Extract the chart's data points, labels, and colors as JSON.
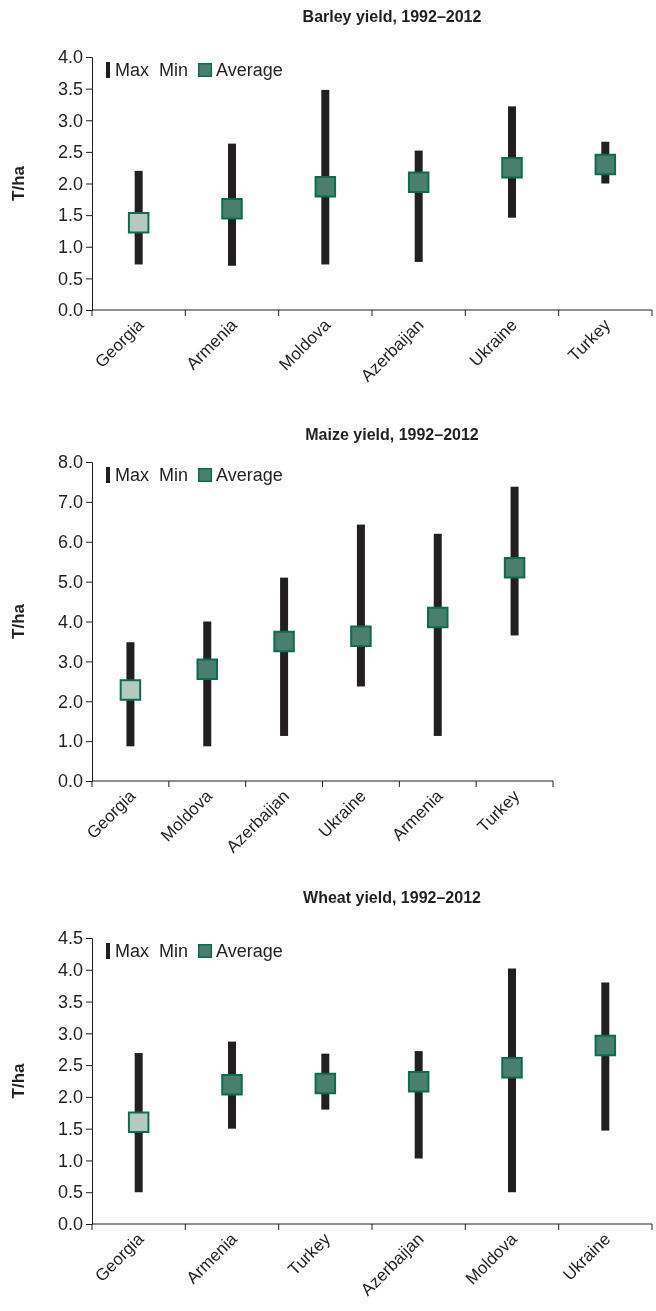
{
  "chart_data": [
    {
      "type": "bar",
      "title": "Barley yield, 1992–2012",
      "ylabel": "T/ha",
      "categories": [
        "Georgia",
        "Armenia",
        "Moldova",
        "Azerbaijan",
        "Ukraine",
        "Turkey"
      ],
      "ylim": [
        0,
        4
      ],
      "yticks": [
        {
          "value": 0,
          "label": "0.0"
        },
        {
          "value": 0.5,
          "label": "0.5"
        },
        {
          "value": 1,
          "label": "1.0"
        },
        {
          "value": 1.5,
          "label": "1.5"
        },
        {
          "value": 2,
          "label": "2.0"
        },
        {
          "value": 2.5,
          "label": "2.5"
        },
        {
          "value": 3,
          "label": "3.0"
        },
        {
          "value": 3.5,
          "label": "3.5"
        },
        {
          "value": 4,
          "label": "4.0"
        }
      ],
      "legend": "top left",
      "marker": "square",
      "series": [
        {
          "name": "Max Min",
          "color": "#231f20",
          "base": [
            0.72,
            0.7,
            0.72,
            0.76,
            1.46,
            2.0
          ],
          "values": [
            1.48,
            1.93,
            2.76,
            1.76,
            1.76,
            0.66
          ]
        },
        {
          "type": "scatter",
          "name": "Average",
          "color": "#4a7f6e",
          "colors": [
            "#b5c9bf",
            "#4a7f6e",
            "#4a7f6e",
            "#4a7f6e",
            "#4a7f6e",
            "#4a7f6e"
          ],
          "values": [
            1.38,
            1.6,
            1.95,
            2.02,
            2.25,
            2.3
          ]
        }
      ]
    },
    {
      "type": "bar",
      "title": "Maize yield, 1992–2012",
      "ylabel": "T/ha",
      "categories": [
        "Georgia",
        "Moldova",
        "Azerbaijan",
        "Ukraine",
        "Armenia",
        "Turkey"
      ],
      "ylim": [
        0,
        8
      ],
      "yticks": [
        {
          "value": 0,
          "label": "0.0"
        },
        {
          "value": 1,
          "label": "1.0"
        },
        {
          "value": 2,
          "label": "2.0"
        },
        {
          "value": 3,
          "label": "3.0"
        },
        {
          "value": 4,
          "label": "4.0"
        },
        {
          "value": 5,
          "label": "5.0"
        },
        {
          "value": 6,
          "label": "6.0"
        },
        {
          "value": 7,
          "label": "7.0"
        },
        {
          "value": 8,
          "label": "8.0"
        }
      ],
      "legend": "top left",
      "marker": "square",
      "series": [
        {
          "name": "Max Min",
          "color": "#231f20",
          "base": [
            0.87,
            0.87,
            1.13,
            2.37,
            1.13,
            3.65
          ],
          "values": [
            2.61,
            3.13,
            3.97,
            4.06,
            5.07,
            3.73
          ]
        },
        {
          "type": "scatter",
          "name": "Average",
          "color": "#4a7f6e",
          "colors": [
            "#b5c9bf",
            "#4a7f6e",
            "#4a7f6e",
            "#4a7f6e",
            "#4a7f6e",
            "#4a7f6e"
          ],
          "values": [
            2.28,
            2.8,
            3.5,
            3.63,
            4.1,
            5.35
          ]
        }
      ]
    },
    {
      "type": "bar",
      "title": "Wheat yield, 1992–2012",
      "ylabel": "T/ha",
      "categories": [
        "Georgia",
        "Armenia",
        "Turkey",
        "Azerbaijan",
        "Moldova",
        "Ukraine"
      ],
      "ylim": [
        0,
        4.5
      ],
      "yticks": [
        {
          "value": 0,
          "label": "0.0"
        },
        {
          "value": 0.5,
          "label": "0.5"
        },
        {
          "value": 1,
          "label": "1.0"
        },
        {
          "value": 1.5,
          "label": "1.5"
        },
        {
          "value": 2,
          "label": "2.0"
        },
        {
          "value": 2.5,
          "label": "2.5"
        },
        {
          "value": 3,
          "label": "3.0"
        },
        {
          "value": 3.5,
          "label": "3.5"
        },
        {
          "value": 4,
          "label": "4.0"
        },
        {
          "value": 4.5,
          "label": "4.5"
        }
      ],
      "legend": "top left",
      "marker": "square",
      "series": [
        {
          "name": "Max Min",
          "color": "#231f20",
          "base": [
            0.5,
            1.5,
            1.8,
            1.03,
            0.5,
            1.47
          ],
          "values": [
            2.19,
            1.37,
            0.88,
            1.69,
            3.52,
            2.33
          ]
        },
        {
          "type": "scatter",
          "name": "Average",
          "color": "#4a7f6e",
          "colors": [
            "#b5c9bf",
            "#4a7f6e",
            "#4a7f6e",
            "#4a7f6e",
            "#4a7f6e",
            "#4a7f6e"
          ],
          "values": [
            1.6,
            2.19,
            2.21,
            2.24,
            2.46,
            2.81
          ]
        }
      ]
    }
  ]
}
